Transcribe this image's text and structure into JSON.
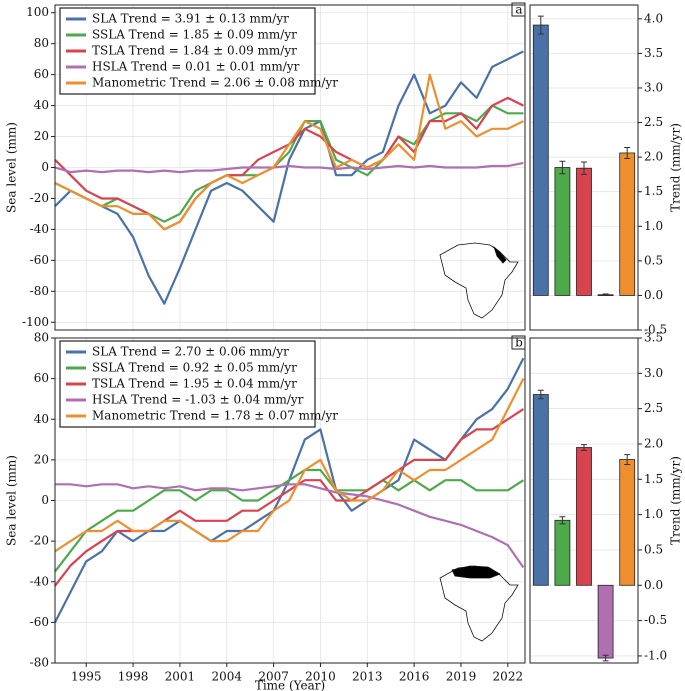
{
  "chart_data": [
    {
      "type": "line",
      "panel": "a",
      "ylabel": "Sea level (mm)",
      "x": [
        1993,
        1994,
        1995,
        1996,
        1997,
        1998,
        1999,
        2000,
        2001,
        2002,
        2003,
        2004,
        2005,
        2006,
        2007,
        2008,
        2009,
        2010,
        2011,
        2012,
        2013,
        2014,
        2015,
        2016,
        2017,
        2018,
        2019,
        2020,
        2021,
        2022,
        2023
      ],
      "xlim": [
        1993,
        2023.1
      ],
      "ylim": [
        -105,
        105
      ],
      "yticks": [
        -100,
        -80,
        -60,
        -40,
        -20,
        0,
        20,
        40,
        60,
        80,
        100
      ],
      "grid": true,
      "legend": "upper left",
      "series": [
        {
          "name": "SLA Trend = 3.91 ± 0.13 mm/yr",
          "color": "#4a72a8",
          "values": [
            -25,
            -15,
            -20,
            -25,
            -30,
            -45,
            -70,
            -88,
            -65,
            -40,
            -15,
            -10,
            -15,
            -25,
            -35,
            5,
            25,
            30,
            -5,
            -5,
            5,
            10,
            40,
            60,
            35,
            40,
            55,
            45,
            65,
            70,
            75
          ]
        },
        {
          "name": "SSLA Trend = 1.85 ± 0.09 mm/yr",
          "color": "#4daa4a",
          "values": [
            -10,
            -15,
            -20,
            -25,
            -20,
            -25,
            -30,
            -35,
            -30,
            -15,
            -10,
            -5,
            -5,
            -5,
            0,
            10,
            30,
            30,
            5,
            0,
            -5,
            5,
            20,
            15,
            30,
            35,
            35,
            30,
            40,
            35,
            35
          ]
        },
        {
          "name": "TSLA Trend = 1.84 ± 0.09 mm/yr",
          "color": "#d9434f",
          "values": [
            5,
            -5,
            -15,
            -20,
            -20,
            -25,
            -30,
            -40,
            -35,
            -20,
            -10,
            -5,
            -5,
            5,
            10,
            15,
            25,
            20,
            10,
            5,
            0,
            5,
            20,
            10,
            30,
            30,
            35,
            25,
            40,
            45,
            40
          ]
        },
        {
          "name": "HSLA Trend = 0.01 ± 0.01 mm/yr",
          "color": "#b06fb0",
          "values": [
            0,
            -3,
            -2,
            -3,
            -2,
            -2,
            -3,
            -2,
            -3,
            -2,
            -2,
            -1,
            0,
            0,
            0,
            1,
            0,
            0,
            -1,
            0,
            -1,
            0,
            1,
            0,
            1,
            0,
            0,
            0,
            1,
            1,
            3
          ]
        },
        {
          "name": "Manometric Trend = 2.06 ± 0.08 mm/yr",
          "color": "#ee8f2f",
          "values": [
            -10,
            -15,
            -20,
            -25,
            -25,
            -30,
            -30,
            -40,
            -35,
            -20,
            -10,
            -5,
            -10,
            -5,
            0,
            15,
            30,
            25,
            0,
            5,
            0,
            5,
            15,
            5,
            60,
            25,
            30,
            20,
            25,
            25,
            30
          ]
        }
      ]
    },
    {
      "type": "bar",
      "ylabel": "Trend (mm/yr)",
      "values": [
        3.91,
        1.85,
        1.84,
        0.01,
        2.06
      ],
      "errors": [
        0.13,
        0.09,
        0.09,
        0.01,
        0.08
      ],
      "colors": [
        "#4a72a8",
        "#4daa4a",
        "#d9434f",
        "#b06fb0",
        "#ee8f2f"
      ],
      "ylim": [
        -0.5,
        4.2
      ],
      "yticks": [
        {
          "value": -0.5,
          "label": "-0.5"
        },
        {
          "value": 0,
          "label": "0.0"
        },
        0.5,
        {
          "value": 1,
          "label": "1.0"
        },
        1.5,
        {
          "value": 2,
          "label": "2.0"
        },
        2.5,
        {
          "value": 3,
          "label": "3.0"
        },
        3.5,
        {
          "value": 4,
          "label": "4.0"
        }
      ]
    },
    {
      "type": "line",
      "panel": "b",
      "ylabel": "Sea level (mm)",
      "xlabel": "Time (Year)",
      "x": [
        1993,
        1994,
        1995,
        1996,
        1997,
        1998,
        1999,
        2000,
        2001,
        2002,
        2003,
        2004,
        2005,
        2006,
        2007,
        2008,
        2009,
        2010,
        2011,
        2012,
        2013,
        2014,
        2015,
        2016,
        2017,
        2018,
        2019,
        2020,
        2021,
        2022,
        2023
      ],
      "xlim": [
        1993,
        2023.1
      ],
      "xticks": [
        1995,
        1998,
        2001,
        2004,
        2007,
        2010,
        2013,
        2016,
        2019,
        2022
      ],
      "ylim": [
        -80,
        80
      ],
      "yticks": [
        -80,
        -60,
        -40,
        -20,
        0,
        20,
        40,
        60,
        80
      ],
      "grid": true,
      "legend": "upper left",
      "series": [
        {
          "name": "SLA Trend = 2.70 ± 0.06 mm/yr",
          "color": "#4a72a8",
          "values": [
            -60,
            -45,
            -30,
            -25,
            -15,
            -20,
            -15,
            -15,
            -10,
            -15,
            -20,
            -15,
            -15,
            -10,
            -5,
            10,
            30,
            35,
            5,
            -5,
            0,
            5,
            10,
            30,
            25,
            20,
            30,
            40,
            45,
            55,
            70
          ]
        },
        {
          "name": "SSLA Trend = 0.92 ± 0.05 mm/yr",
          "color": "#4daa4a",
          "values": [
            -35,
            -25,
            -15,
            -10,
            -5,
            -5,
            0,
            5,
            5,
            0,
            5,
            5,
            0,
            0,
            5,
            10,
            15,
            15,
            5,
            5,
            5,
            10,
            5,
            10,
            5,
            10,
            10,
            5,
            5,
            5,
            10
          ]
        },
        {
          "name": "TSLA Trend = 1.95 ± 0.04 mm/yr",
          "color": "#d9434f",
          "values": [
            -42,
            -32,
            -25,
            -20,
            -15,
            -15,
            -15,
            -10,
            -5,
            -10,
            -10,
            -10,
            -5,
            -5,
            0,
            5,
            10,
            10,
            0,
            0,
            5,
            10,
            15,
            20,
            20,
            20,
            30,
            35,
            35,
            40,
            45
          ]
        },
        {
          "name": "HSLA Trend = -1.03 ± 0.04 mm/yr",
          "color": "#b06fb0",
          "values": [
            8,
            8,
            7,
            8,
            8,
            6,
            7,
            6,
            7,
            5,
            6,
            6,
            5,
            6,
            7,
            8,
            8,
            6,
            4,
            3,
            2,
            0,
            -2,
            -5,
            -8,
            -10,
            -12,
            -15,
            -18,
            -22,
            -33
          ]
        },
        {
          "name": "Manometric Trend = 1.78 ± 0.07 mm/yr",
          "color": "#ee8f2f",
          "values": [
            -25,
            -20,
            -15,
            -15,
            -10,
            -15,
            -15,
            -10,
            -10,
            -15,
            -20,
            -20,
            -15,
            -15,
            -5,
            0,
            15,
            20,
            5,
            0,
            0,
            5,
            15,
            10,
            15,
            15,
            20,
            25,
            30,
            45,
            60
          ]
        }
      ]
    },
    {
      "type": "bar",
      "ylabel": "Trend (mm/yr)",
      "values": [
        2.7,
        0.92,
        1.95,
        -1.03,
        1.78
      ],
      "errors": [
        0.06,
        0.05,
        0.04,
        0.04,
        0.07
      ],
      "colors": [
        "#4a72a8",
        "#4daa4a",
        "#d9434f",
        "#b06fb0",
        "#ee8f2f"
      ],
      "ylim": [
        -1.1,
        3.5
      ],
      "yticks": [
        {
          "value": -1,
          "label": "-1.0"
        },
        -0.5,
        {
          "value": 0,
          "label": "0.0"
        },
        0.5,
        {
          "value": 1,
          "label": "1.0"
        },
        1.5,
        {
          "value": 2,
          "label": "2.0"
        },
        2.5,
        {
          "value": 3,
          "label": "3.0"
        },
        3.5
      ]
    }
  ]
}
